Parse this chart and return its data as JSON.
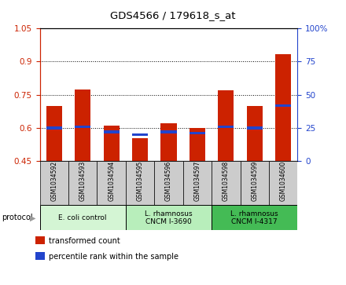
{
  "title": "GDS4566 / 179618_s_at",
  "samples": [
    "GSM1034592",
    "GSM1034593",
    "GSM1034594",
    "GSM1034595",
    "GSM1034596",
    "GSM1034597",
    "GSM1034598",
    "GSM1034599",
    "GSM1034600"
  ],
  "transformed_count": [
    0.7,
    0.775,
    0.61,
    0.555,
    0.62,
    0.6,
    0.77,
    0.7,
    0.935
  ],
  "percentile_rank": [
    25,
    26,
    22,
    20,
    22,
    21,
    26,
    25,
    42
  ],
  "ylim_left": [
    0.45,
    1.05
  ],
  "ylim_right": [
    0,
    100
  ],
  "yticks_left": [
    0.45,
    0.6,
    0.75,
    0.9,
    1.05
  ],
  "yticks_right": [
    0,
    25,
    50,
    75,
    100
  ],
  "bar_color": "#cc2200",
  "percentile_color": "#2244cc",
  "bar_width": 0.55,
  "groups": [
    {
      "label": "E. coli control",
      "start": 0,
      "end": 3,
      "color": "#d4f5d4"
    },
    {
      "label": "L. rhamnosus\nCNCM I-3690",
      "start": 3,
      "end": 6,
      "color": "#b8eebb"
    },
    {
      "label": "L. rhamnosus\nCNCM I-4317",
      "start": 6,
      "end": 9,
      "color": "#44bb55"
    }
  ],
  "protocol_label": "protocol",
  "legend_items": [
    {
      "label": "transformed count",
      "color": "#cc2200"
    },
    {
      "label": "percentile rank within the sample",
      "color": "#2244cc"
    }
  ],
  "tick_label_color_left": "#cc2200",
  "tick_label_color_right": "#2244cc",
  "bg_sample_row": "#cccccc"
}
